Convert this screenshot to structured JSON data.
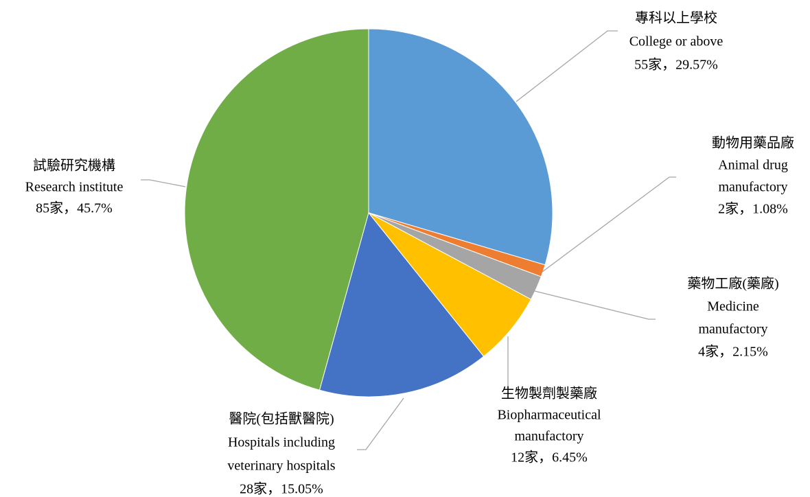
{
  "chart_data": {
    "type": "pie",
    "categories": [
      "專科以上學校",
      "動物用藥品廠",
      "藥物工廠(藥廠)",
      "生物製劑製藥廠",
      "醫院(包括獸醫院)",
      "試驗研究機構"
    ],
    "categories_en": [
      [
        "College or above"
      ],
      [
        "Animal drug",
        "manufactory"
      ],
      [
        "Medicine",
        "manufactory"
      ],
      [
        "Biopharmaceutical",
        "manufactory"
      ],
      [
        "Hospitals including",
        "veterinary hospitals"
      ],
      [
        "Research institute"
      ]
    ],
    "values": [
      55,
      2,
      4,
      12,
      28,
      85
    ],
    "value_labels": [
      "55家，29.57%",
      "2家，1.08%",
      "4家，2.15%",
      "12家，6.45%",
      "28家，15.05%",
      "85家，45.7%"
    ],
    "colors": [
      "#5b9bd5",
      "#ed7d31",
      "#a5a5a5",
      "#ffc000",
      "#4472c4",
      "#70ad47"
    ]
  }
}
